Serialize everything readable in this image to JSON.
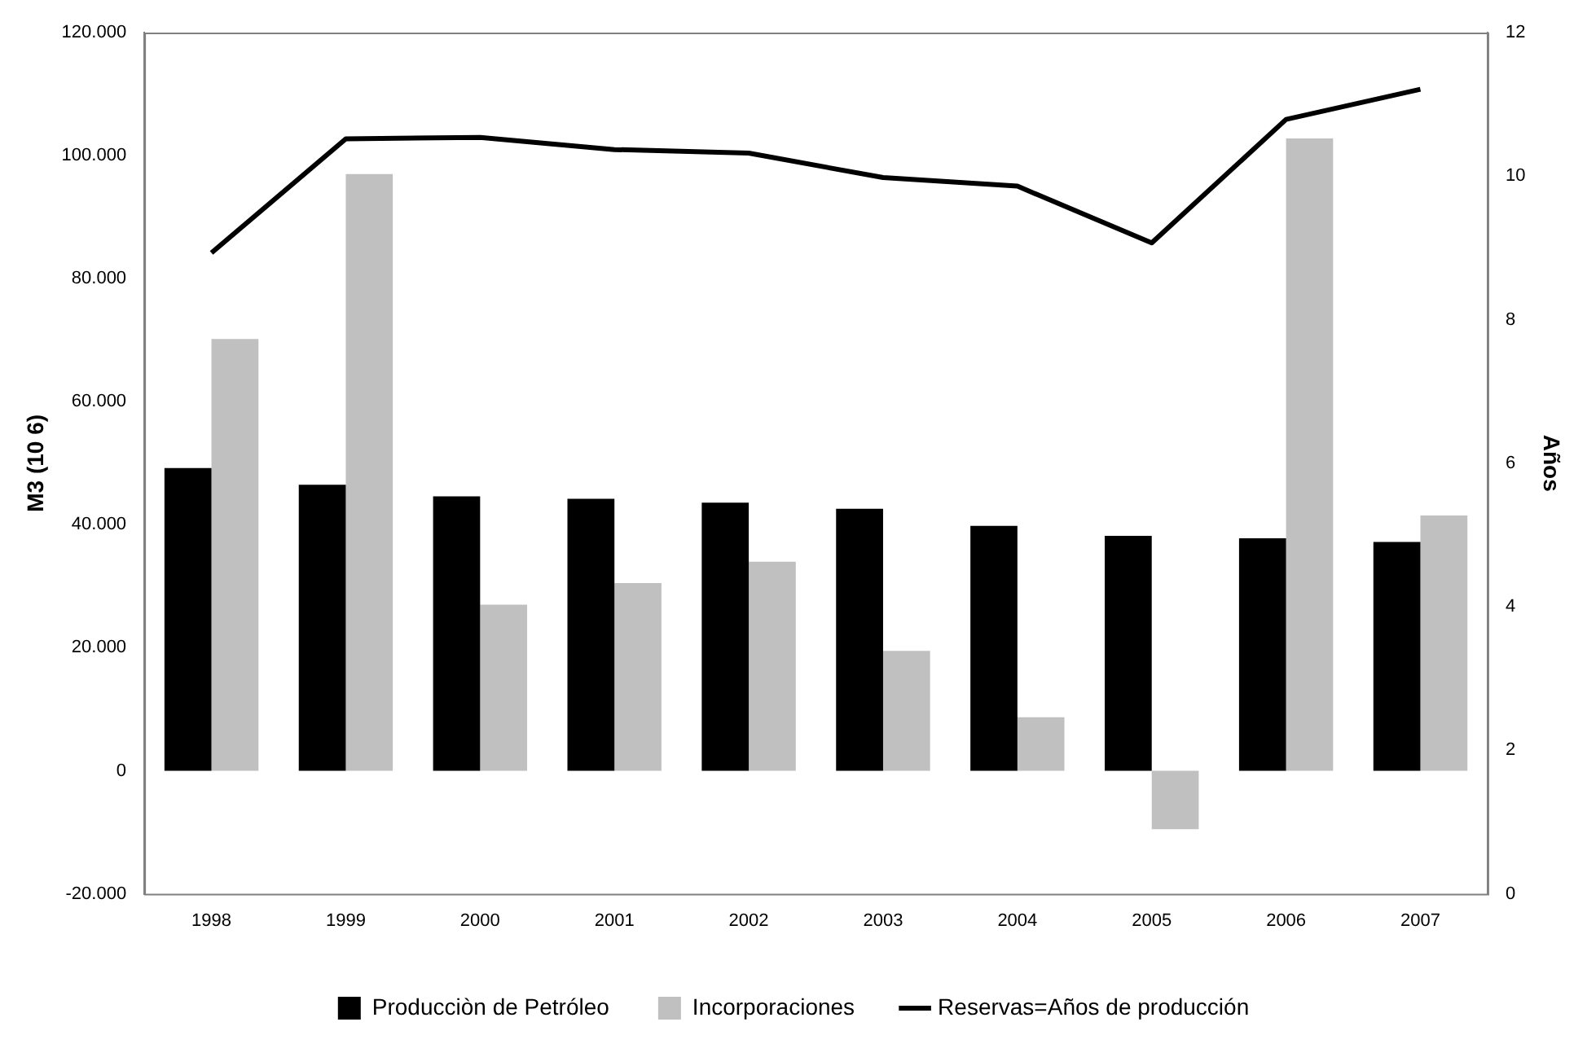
{
  "chart_data": {
    "type": "bar",
    "ylabel": "M3 (10 6)",
    "y2label": "Años",
    "categories": [
      "1998",
      "1999",
      "2000",
      "2001",
      "2002",
      "2003",
      "2004",
      "2005",
      "2006",
      "2007"
    ],
    "series": [
      {
        "name": "Producciòn de Petróleo",
        "color": "#000000",
        "values": [
          49200,
          46500,
          44600,
          44200,
          43600,
          42600,
          39800,
          38200,
          37800,
          37200
        ]
      },
      {
        "name": "Incorporaciones",
        "color": "#c0c0c0",
        "values": [
          70200,
          97000,
          27000,
          30500,
          34000,
          19500,
          8700,
          -9500,
          102800,
          41500
        ]
      },
      {
        "name": "Reservas=Años de producción",
        "type": "line",
        "axis": "y2",
        "color": "#000000",
        "marker": "none",
        "values": [
          8.93,
          10.52,
          10.54,
          10.37,
          10.32,
          9.98,
          9.86,
          9.07,
          10.79,
          11.21
        ]
      }
    ],
    "ylim": [
      -20000,
      120000
    ],
    "yticks": [
      {
        "value": -20000,
        "label": "-20.000"
      },
      {
        "value": 0,
        "label": "0"
      },
      {
        "value": 20000,
        "label": "20.000"
      },
      {
        "value": 40000,
        "label": "40.000"
      },
      {
        "value": 60000,
        "label": "60.000"
      },
      {
        "value": 80000,
        "label": "80.000"
      },
      {
        "value": 100000,
        "label": "100.000"
      },
      {
        "value": 120000,
        "label": "120.000"
      }
    ],
    "y2lim": [
      0,
      12
    ],
    "y2ticks": [
      0,
      2,
      4,
      6,
      8,
      10,
      12
    ],
    "grid": false,
    "legend": "bottom"
  }
}
